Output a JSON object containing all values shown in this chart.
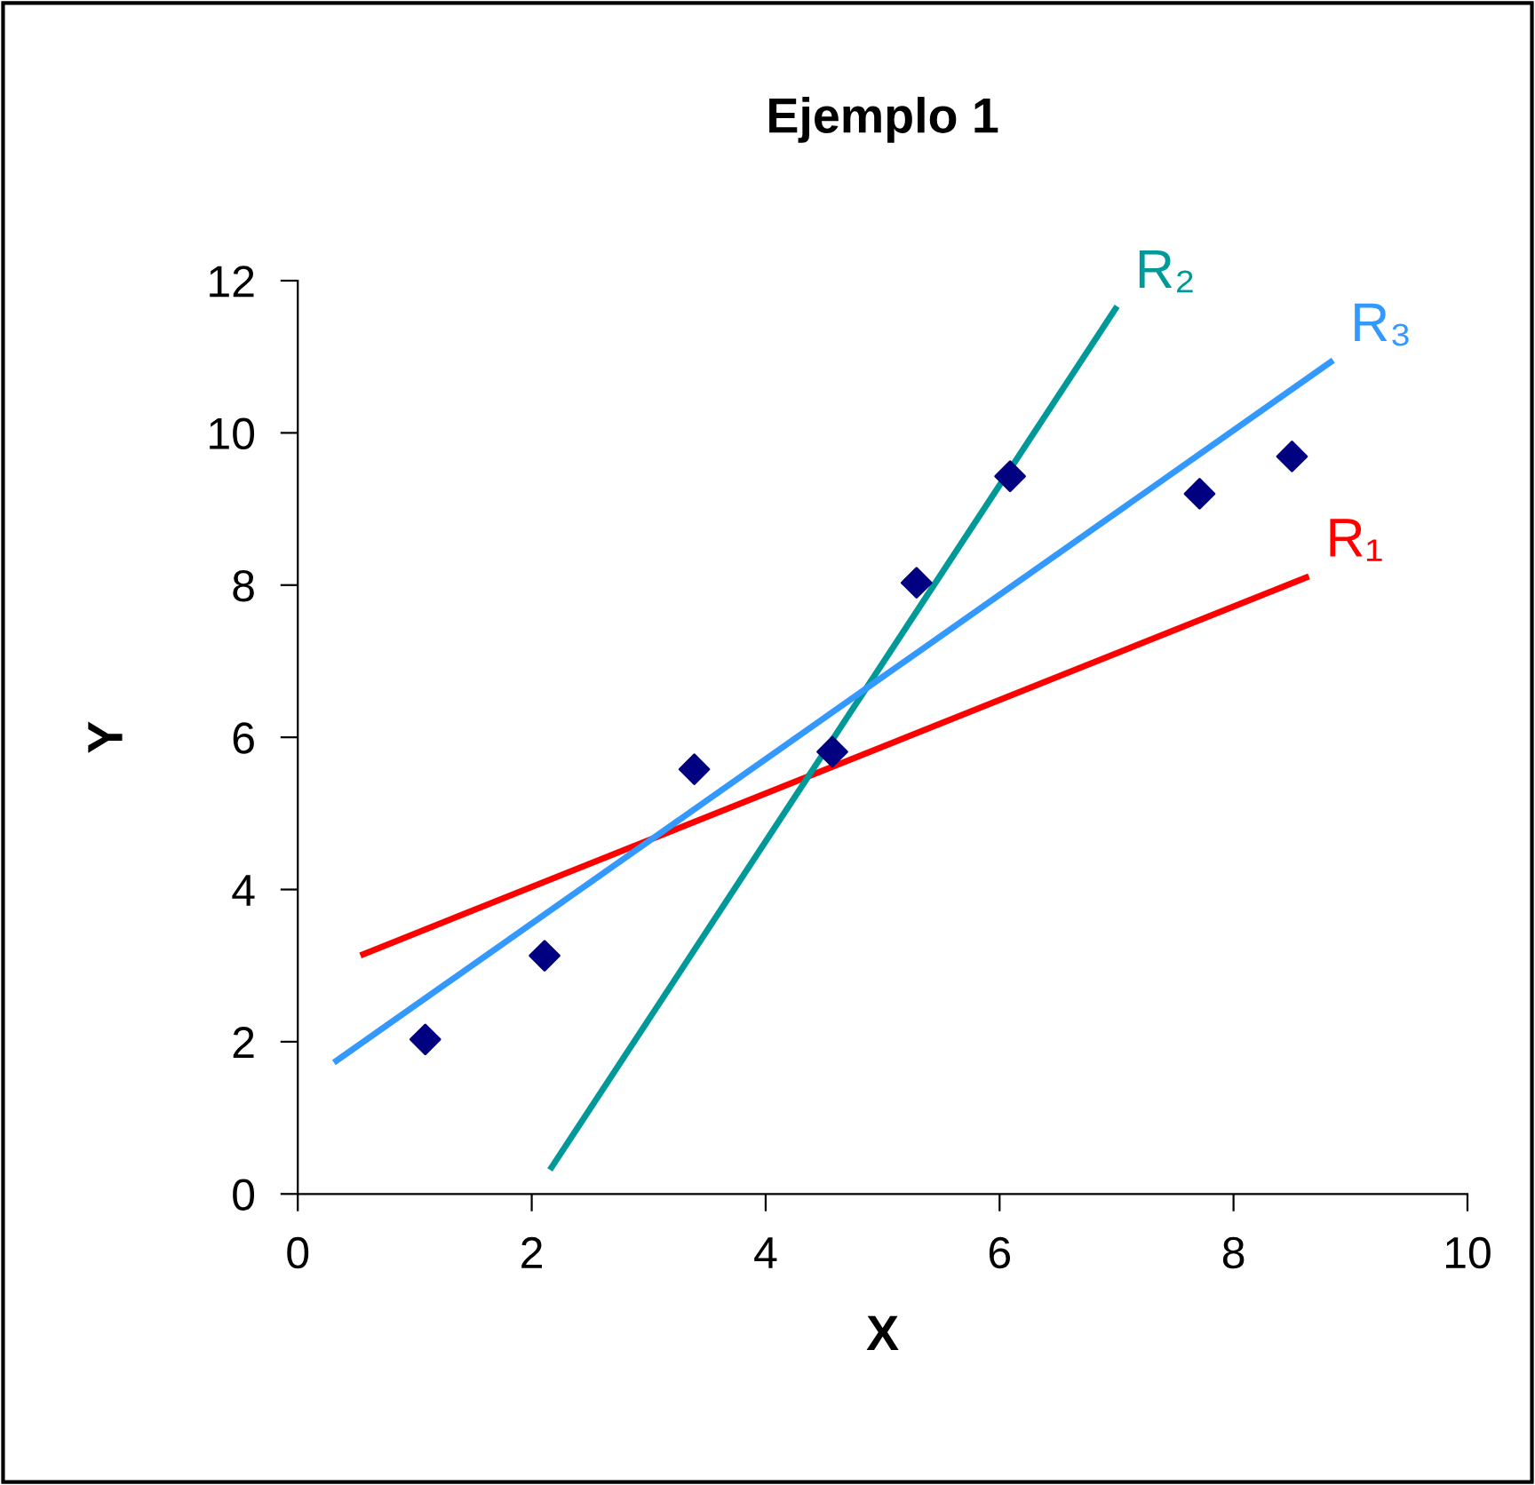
{
  "chart_data": {
    "type": "scatter",
    "title": "Ejemplo 1",
    "xlabel": "X",
    "ylabel": "Y",
    "xlim": [
      0,
      10
    ],
    "ylim": [
      0,
      12
    ],
    "xticks": [
      0,
      2,
      4,
      6,
      8,
      10
    ],
    "yticks": [
      0,
      2,
      4,
      6,
      8,
      10,
      12
    ],
    "grid": false,
    "legend": false,
    "series": [
      {
        "marker": "diamond",
        "color": "#000080",
        "x": [
          1.09,
          2.11,
          3.39,
          4.57,
          5.29,
          6.09,
          7.71,
          8.5
        ],
        "values": [
          2.03,
          3.13,
          5.58,
          5.81,
          8.03,
          9.43,
          9.2,
          9.69
        ]
      },
      {
        "type": "line",
        "name": "R₁",
        "color": "#ff0000",
        "x": [
          0.56,
          8.62
        ],
        "values": [
          3.15,
          8.1
        ]
      },
      {
        "type": "line",
        "name": "R₂",
        "color": "#009999",
        "x": [
          2.17,
          6.99
        ],
        "values": [
          0.35,
          11.63
        ]
      },
      {
        "type": "line",
        "name": "R₃",
        "color": "#3399ff",
        "x": [
          0.33,
          8.83
        ],
        "values": [
          1.75,
          10.93
        ]
      }
    ]
  }
}
